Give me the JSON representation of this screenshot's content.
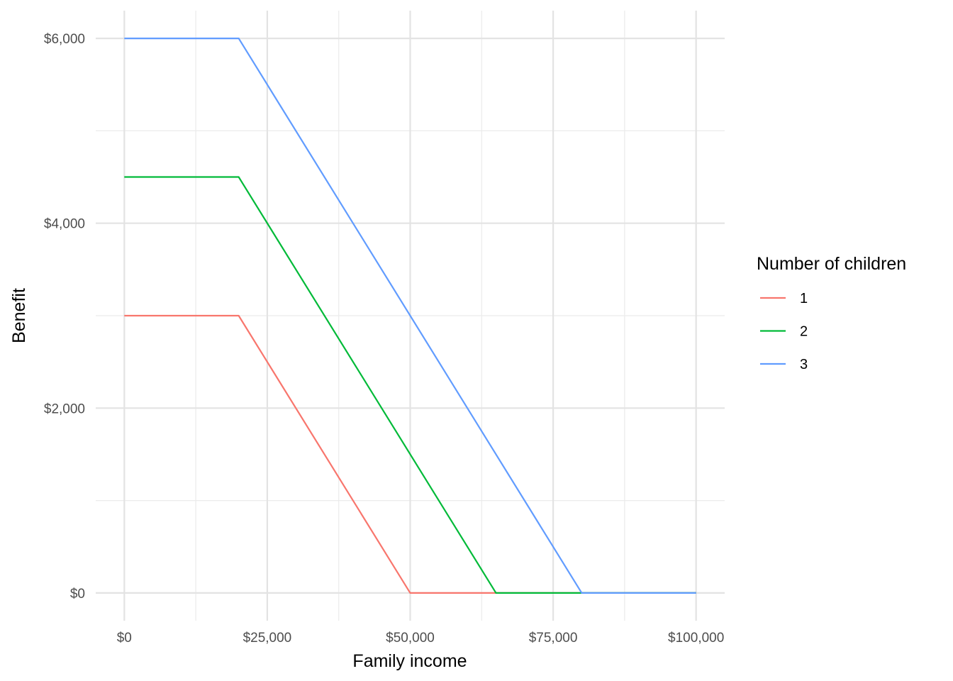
{
  "chart_data": {
    "type": "line",
    "xlabel": "Family income",
    "ylabel": "Benefit",
    "xlim": [
      -5000,
      105000
    ],
    "ylim": [
      -300,
      6300
    ],
    "x_ticks": [
      0,
      25000,
      50000,
      75000,
      100000
    ],
    "x_tick_labels": [
      "$0",
      "$25,000",
      "$50,000",
      "$75,000",
      "$100,000"
    ],
    "x_minor_ticks": [
      12500,
      37500,
      62500,
      87500
    ],
    "y_ticks": [
      0,
      2000,
      4000,
      6000
    ],
    "y_tick_labels": [
      "$0",
      "$2,000",
      "$4,000",
      "$6,000"
    ],
    "y_minor_ticks": [
      1000,
      3000,
      5000
    ],
    "grid": true,
    "legend": {
      "title": "Number of children",
      "position": "right"
    },
    "series": [
      {
        "name": "1",
        "color": "#F8766D",
        "points": [
          [
            0,
            3000
          ],
          [
            20000,
            3000
          ],
          [
            50000,
            0
          ],
          [
            100000,
            0
          ]
        ]
      },
      {
        "name": "2",
        "color": "#00BA38",
        "points": [
          [
            0,
            4500
          ],
          [
            20000,
            4500
          ],
          [
            65000,
            0
          ],
          [
            100000,
            0
          ]
        ]
      },
      {
        "name": "3",
        "color": "#619CFF",
        "points": [
          [
            0,
            6000
          ],
          [
            20000,
            6000
          ],
          [
            80000,
            0
          ],
          [
            100000,
            0
          ]
        ]
      }
    ]
  }
}
